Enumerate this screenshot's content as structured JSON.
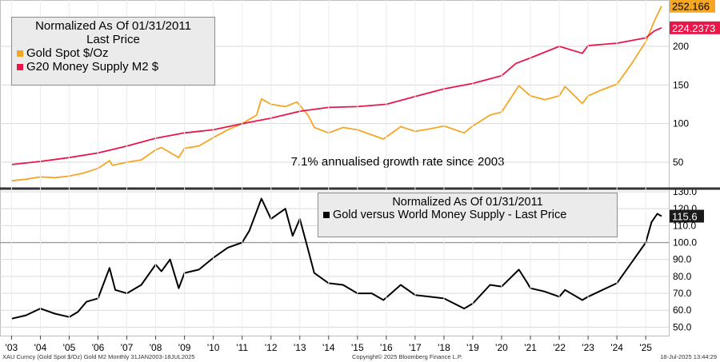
{
  "chart_data": [
    {
      "type": "line",
      "title": "Normalized As Of 01/31/2011",
      "subtitle": "Last Price",
      "annotation": "7.1% annualised growth rate since 2003",
      "ylim": [
        20,
        260
      ],
      "y_ticks": [
        50,
        100,
        150,
        200
      ],
      "y_tick_labels": [
        "50",
        "100",
        "150",
        "200"
      ],
      "series": [
        {
          "name": "Gold Spot $/Oz",
          "color": "#f5a623",
          "last_value_label": "252.166",
          "x": [
            2003.0,
            2003.5,
            2004.0,
            2004.5,
            2005.0,
            2005.5,
            2006.0,
            2006.4,
            2006.5,
            2007.0,
            2007.5,
            2008.0,
            2008.2,
            2008.8,
            2009.0,
            2009.5,
            2010.0,
            2010.5,
            2011.0,
            2011.5,
            2011.67,
            2012.0,
            2012.5,
            2012.9,
            2013.3,
            2013.5,
            2014.0,
            2014.5,
            2015.0,
            2015.9,
            2016.5,
            2017.0,
            2017.5,
            2018.0,
            2018.7,
            2019.0,
            2019.6,
            2020.0,
            2020.6,
            2021.0,
            2021.5,
            2022.0,
            2022.2,
            2022.8,
            2023.0,
            2023.5,
            2024.0,
            2024.5,
            2025.0,
            2025.3,
            2025.55
          ],
          "values": [
            26,
            28,
            31,
            30,
            32,
            36,
            42,
            52,
            46,
            50,
            53,
            66,
            69,
            56,
            68,
            71,
            82,
            92,
            100,
            111,
            132,
            125,
            122,
            128,
            110,
            95,
            88,
            95,
            92,
            80,
            96,
            90,
            93,
            97,
            88,
            97,
            111,
            115,
            149,
            136,
            131,
            136,
            148,
            126,
            136,
            144,
            151,
            177,
            206,
            233,
            252
          ]
        },
        {
          "name": "G20 Money Supply M2 $",
          "color": "#e8174a",
          "last_value_label": "224.2373",
          "x": [
            2003.0,
            2004.0,
            2005.0,
            2006.0,
            2007.0,
            2008.0,
            2009.0,
            2010.0,
            2011.0,
            2012.0,
            2013.0,
            2014.0,
            2015.0,
            2016.0,
            2017.0,
            2018.0,
            2019.0,
            2020.0,
            2020.5,
            2021.0,
            2022.0,
            2022.8,
            2023.0,
            2024.0,
            2025.0,
            2025.3,
            2025.55
          ],
          "values": [
            47,
            51,
            56,
            62,
            71,
            81,
            88,
            92,
            100,
            107,
            116,
            121,
            122,
            125,
            135,
            145,
            152,
            162,
            178,
            185,
            200,
            191,
            201,
            204,
            211,
            220,
            224
          ]
        }
      ]
    },
    {
      "type": "line",
      "title": "Normalized As Of 01/31/2011",
      "reference_line": 100,
      "ylim": [
        45,
        130
      ],
      "y_ticks": [
        50,
        60,
        70,
        80,
        90,
        100,
        110,
        120,
        130
      ],
      "y_tick_labels": [
        "50.0",
        "60.0",
        "70.0",
        "80.0",
        "90.0",
        "100.0",
        "110.0",
        "120.0",
        "130.0"
      ],
      "series": [
        {
          "name": "Gold versus World Money Supply - Last Price",
          "color": "#000000",
          "last_value_label": "115.6",
          "x": [
            2003.0,
            2003.5,
            2004.0,
            2004.5,
            2005.0,
            2005.3,
            2005.6,
            2006.0,
            2006.4,
            2006.6,
            2007.0,
            2007.5,
            2008.0,
            2008.2,
            2008.5,
            2008.8,
            2009.0,
            2009.5,
            2010.0,
            2010.5,
            2011.0,
            2011.25,
            2011.67,
            2012.0,
            2012.5,
            2012.75,
            2013.0,
            2013.3,
            2013.5,
            2014.0,
            2014.5,
            2015.0,
            2015.5,
            2015.9,
            2016.5,
            2017.0,
            2017.5,
            2018.0,
            2018.7,
            2019.0,
            2019.6,
            2020.0,
            2020.6,
            2020.9,
            2021.0,
            2021.5,
            2022.0,
            2022.2,
            2022.8,
            2023.0,
            2023.5,
            2024.0,
            2024.5,
            2025.0,
            2025.2,
            2025.4,
            2025.55
          ],
          "values": [
            55,
            57,
            61,
            58,
            56,
            59,
            65,
            67,
            85,
            72,
            70,
            75,
            87,
            83,
            90,
            73,
            82,
            84,
            91,
            97,
            100,
            107,
            126,
            114,
            120,
            104,
            114,
            95,
            82,
            76,
            75,
            70,
            70,
            66,
            75,
            69,
            68,
            67,
            61,
            64,
            75,
            74,
            84,
            76,
            73,
            71,
            68,
            72,
            66,
            68,
            72,
            76,
            88,
            100,
            112,
            117,
            115.6
          ]
        }
      ]
    }
  ],
  "x_axis": {
    "range": [
      2002.6,
      2025.8
    ],
    "ticks": [
      2003,
      2004,
      2005,
      2006,
      2007,
      2008,
      2009,
      2010,
      2011,
      2012,
      2013,
      2014,
      2015,
      2016,
      2017,
      2018,
      2019,
      2020,
      2021,
      2022,
      2023,
      2024,
      2025
    ],
    "tick_labels": [
      "'03",
      "'04",
      "'05",
      "'06",
      "'07",
      "'08",
      "'09",
      "'10",
      "'11",
      "'12",
      "'13",
      "'14",
      "'15",
      "'16",
      "'17",
      "'18",
      "'19",
      "'20",
      "'21",
      "'22",
      "'23",
      "'24",
      "'25"
    ]
  },
  "footer": {
    "left": "XAU Curncy (Gold Spot  $/Oz) Gold M2  Monthly 31JAN2003-18JUL2025",
    "center": "Copyright© 2025 Bloomberg Finance L.P.",
    "right": "18-Jul-2025 13:44:29"
  }
}
